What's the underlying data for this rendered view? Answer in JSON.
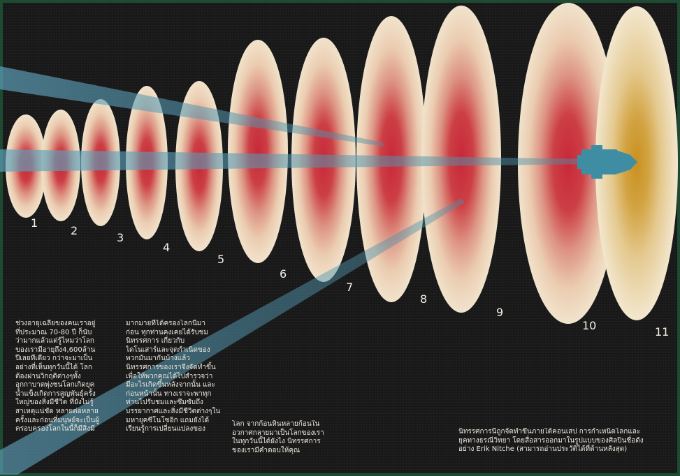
{
  "colors": {
    "board": "#1c1b1b",
    "frame": "#1d4a31",
    "ring_red": "#c8283a",
    "ring_cream": "#efdcc3",
    "last_center": "#c9901f",
    "beam": "#5fa3bd"
  },
  "icons": [
    "spaceship-icon"
  ],
  "stages": [
    {
      "number": "1"
    },
    {
      "number": "2"
    },
    {
      "number": "3"
    },
    {
      "number": "4"
    },
    {
      "number": "5"
    },
    {
      "number": "6"
    },
    {
      "number": "7"
    },
    {
      "number": "8"
    },
    {
      "number": "9"
    },
    {
      "number": "10"
    },
    {
      "number": "11"
    }
  ],
  "paragraphs": {
    "p1": "ช่วงอายุเฉลี่ยของคนเราอยู่\nที่ประมาณ 70-80 ปี ก็นับ\nว่ามากแล้วแต่รู้ไหมว่าโลก\nของเรามีอายุถึง4,600ล้าน\nปีเลยทีเดียว กว่าจะมาเป็น\nอย่างที่เห็นทุกวันนี้ได้ โลก\nต้องผ่านวิกฤติต่างๆทั้ง\nอุกกาบาตพุ่งชนโลกเกิดยุค\nน้ำแข็งเกิดการสูญพันธุ์ครั้ง\nใหญ่ของสิ่งมีชีวิต ที่ยังไม่รู้\nสาเหตุแน่ชัด หลายต่อหลาย\nครั้งและก่อนที่มนุษย์จะเป็นผู้\nครอบครองโลกในนี้ก็มีสิ่งมี",
    "p2": "มากมายที่ได้ครองโลกนี้มา\nก่อน ทุกท่านคงเคยได้รับชม\nนิทรรศการ เกี่ยวกับ\nไดโนเสาร์และจุดกำเนิดของ\nพวกมันมากันบ้างแล้ว\nนิทรรศการของเราจึงจัดทำขึ้น\nเพื่อให้พวกคุณได้ไปสำรวจว่า\nมีอะไรเกิดขึ้นหลังจากนั้น และ\nก่อนหน้านั้น ทางเราจะพาทุก\nท่านไปรับชมและซึมซับถึง\nบรรยากาศและสิ่งมีชีวิตต่างๆใน\nมหายุคซีโนโซอิก แถมยังได้\nเรียนรู้การเปลี่ยนแปลงของ",
    "p3": "โลก จากก้อนหินหลายก้อนใน\nอวกาศกลายมาเป็นโลกของเรา\nในทุกวันนี้ได้ยังไง นิทรรศการ\nของเรามีคำตอบให้คุณ",
    "p4": "นิทรรศการนี้ถูกจัดทำขึ้นภายใต้คอนเสป การกำเหนิดโลกและ\nยุคทางธรณีวิทยา โดยสื่อสารออกมาในรูปแบบของศิลปินชื่อดัง\nอย่าง Erik Nitche (สามารถอ่านประวัติได้ที่ด้านหลังสุด)"
  }
}
